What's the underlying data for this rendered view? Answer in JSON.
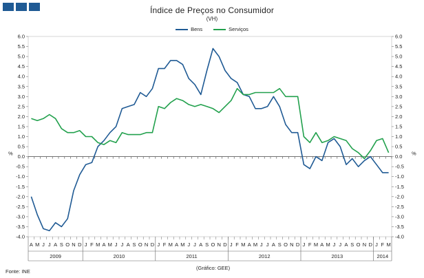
{
  "chart_data": {
    "type": "line",
    "title": "Índice de Preços no Consumidor",
    "subtitle": "(VH)",
    "ylabel_left": "%",
    "ylabel_right": "%",
    "ylim": [
      -4.0,
      6.0
    ],
    "yticks": [
      "-4.0",
      "-3.5",
      "-3.0",
      "-2.5",
      "-2.0",
      "-1.5",
      "-1.0",
      "-0.5",
      "0.0",
      "0.5",
      "1.0",
      "1.5",
      "2.0",
      "2.5",
      "3.0",
      "3.5",
      "4.0",
      "4.5",
      "5.0",
      "5.5",
      "6.0"
    ],
    "month_labels": [
      "A",
      "M",
      "J",
      "J",
      "A",
      "S",
      "O",
      "N",
      "D",
      "J",
      "F",
      "M",
      "A",
      "M",
      "J",
      "J",
      "A",
      "S",
      "O",
      "N",
      "D",
      "J",
      "F",
      "M",
      "A",
      "M",
      "J",
      "J",
      "A",
      "S",
      "O",
      "N",
      "D",
      "J",
      "F",
      "M",
      "A",
      "M",
      "J",
      "J",
      "A",
      "S",
      "O",
      "N",
      "D",
      "J",
      "F",
      "M",
      "A",
      "M",
      "J",
      "J",
      "A",
      "S",
      "O",
      "N",
      "D",
      "J",
      "F",
      "M"
    ],
    "years": [
      {
        "label": "2009",
        "start": 0,
        "end": 9
      },
      {
        "label": "2010",
        "start": 9,
        "end": 21
      },
      {
        "label": "2011",
        "start": 21,
        "end": 33
      },
      {
        "label": "2012",
        "start": 33,
        "end": 45
      },
      {
        "label": "2013",
        "start": 45,
        "end": 57
      },
      {
        "label": "2014",
        "start": 57,
        "end": 60
      }
    ],
    "series": [
      {
        "name": "Bens",
        "color": "#1f5a94",
        "values": [
          -2.0,
          -2.9,
          -3.6,
          -3.7,
          -3.3,
          -3.5,
          -3.1,
          -1.7,
          -0.9,
          -0.4,
          -0.3,
          0.5,
          0.8,
          1.2,
          1.5,
          2.4,
          2.5,
          2.6,
          3.2,
          3.0,
          3.4,
          4.4,
          4.4,
          4.8,
          4.8,
          4.6,
          3.9,
          3.6,
          3.1,
          4.3,
          5.4,
          5.0,
          4.3,
          3.9,
          3.7,
          3.1,
          3.0,
          2.4,
          2.4,
          2.5,
          3.0,
          2.5,
          1.6,
          1.2,
          1.2,
          -0.4,
          -0.6,
          0.0,
          -0.2,
          0.7,
          0.9,
          0.5,
          -0.4,
          -0.1,
          -0.5,
          -0.2,
          0.0,
          -0.4,
          -0.8,
          -0.8
        ]
      },
      {
        "name": "Serviços",
        "color": "#21a04c",
        "values": [
          1.9,
          1.8,
          1.9,
          2.1,
          1.9,
          1.4,
          1.2,
          1.2,
          1.3,
          1.0,
          1.0,
          0.7,
          0.6,
          0.8,
          0.7,
          1.2,
          1.1,
          1.1,
          1.1,
          1.2,
          1.2,
          2.5,
          2.4,
          2.7,
          2.9,
          2.8,
          2.6,
          2.5,
          2.6,
          2.5,
          2.4,
          2.2,
          2.5,
          2.8,
          3.4,
          3.1,
          3.1,
          3.2,
          3.2,
          3.2,
          3.2,
          3.4,
          3.0,
          3.0,
          3.0,
          1.0,
          0.7,
          1.2,
          0.7,
          0.8,
          1.0,
          0.9,
          0.8,
          0.4,
          0.2,
          -0.1,
          0.3,
          0.8,
          0.9,
          0.2
        ]
      }
    ]
  },
  "footer": {
    "source": "Fonte: INE",
    "graph_source": "(Gráfico: GEE)"
  }
}
